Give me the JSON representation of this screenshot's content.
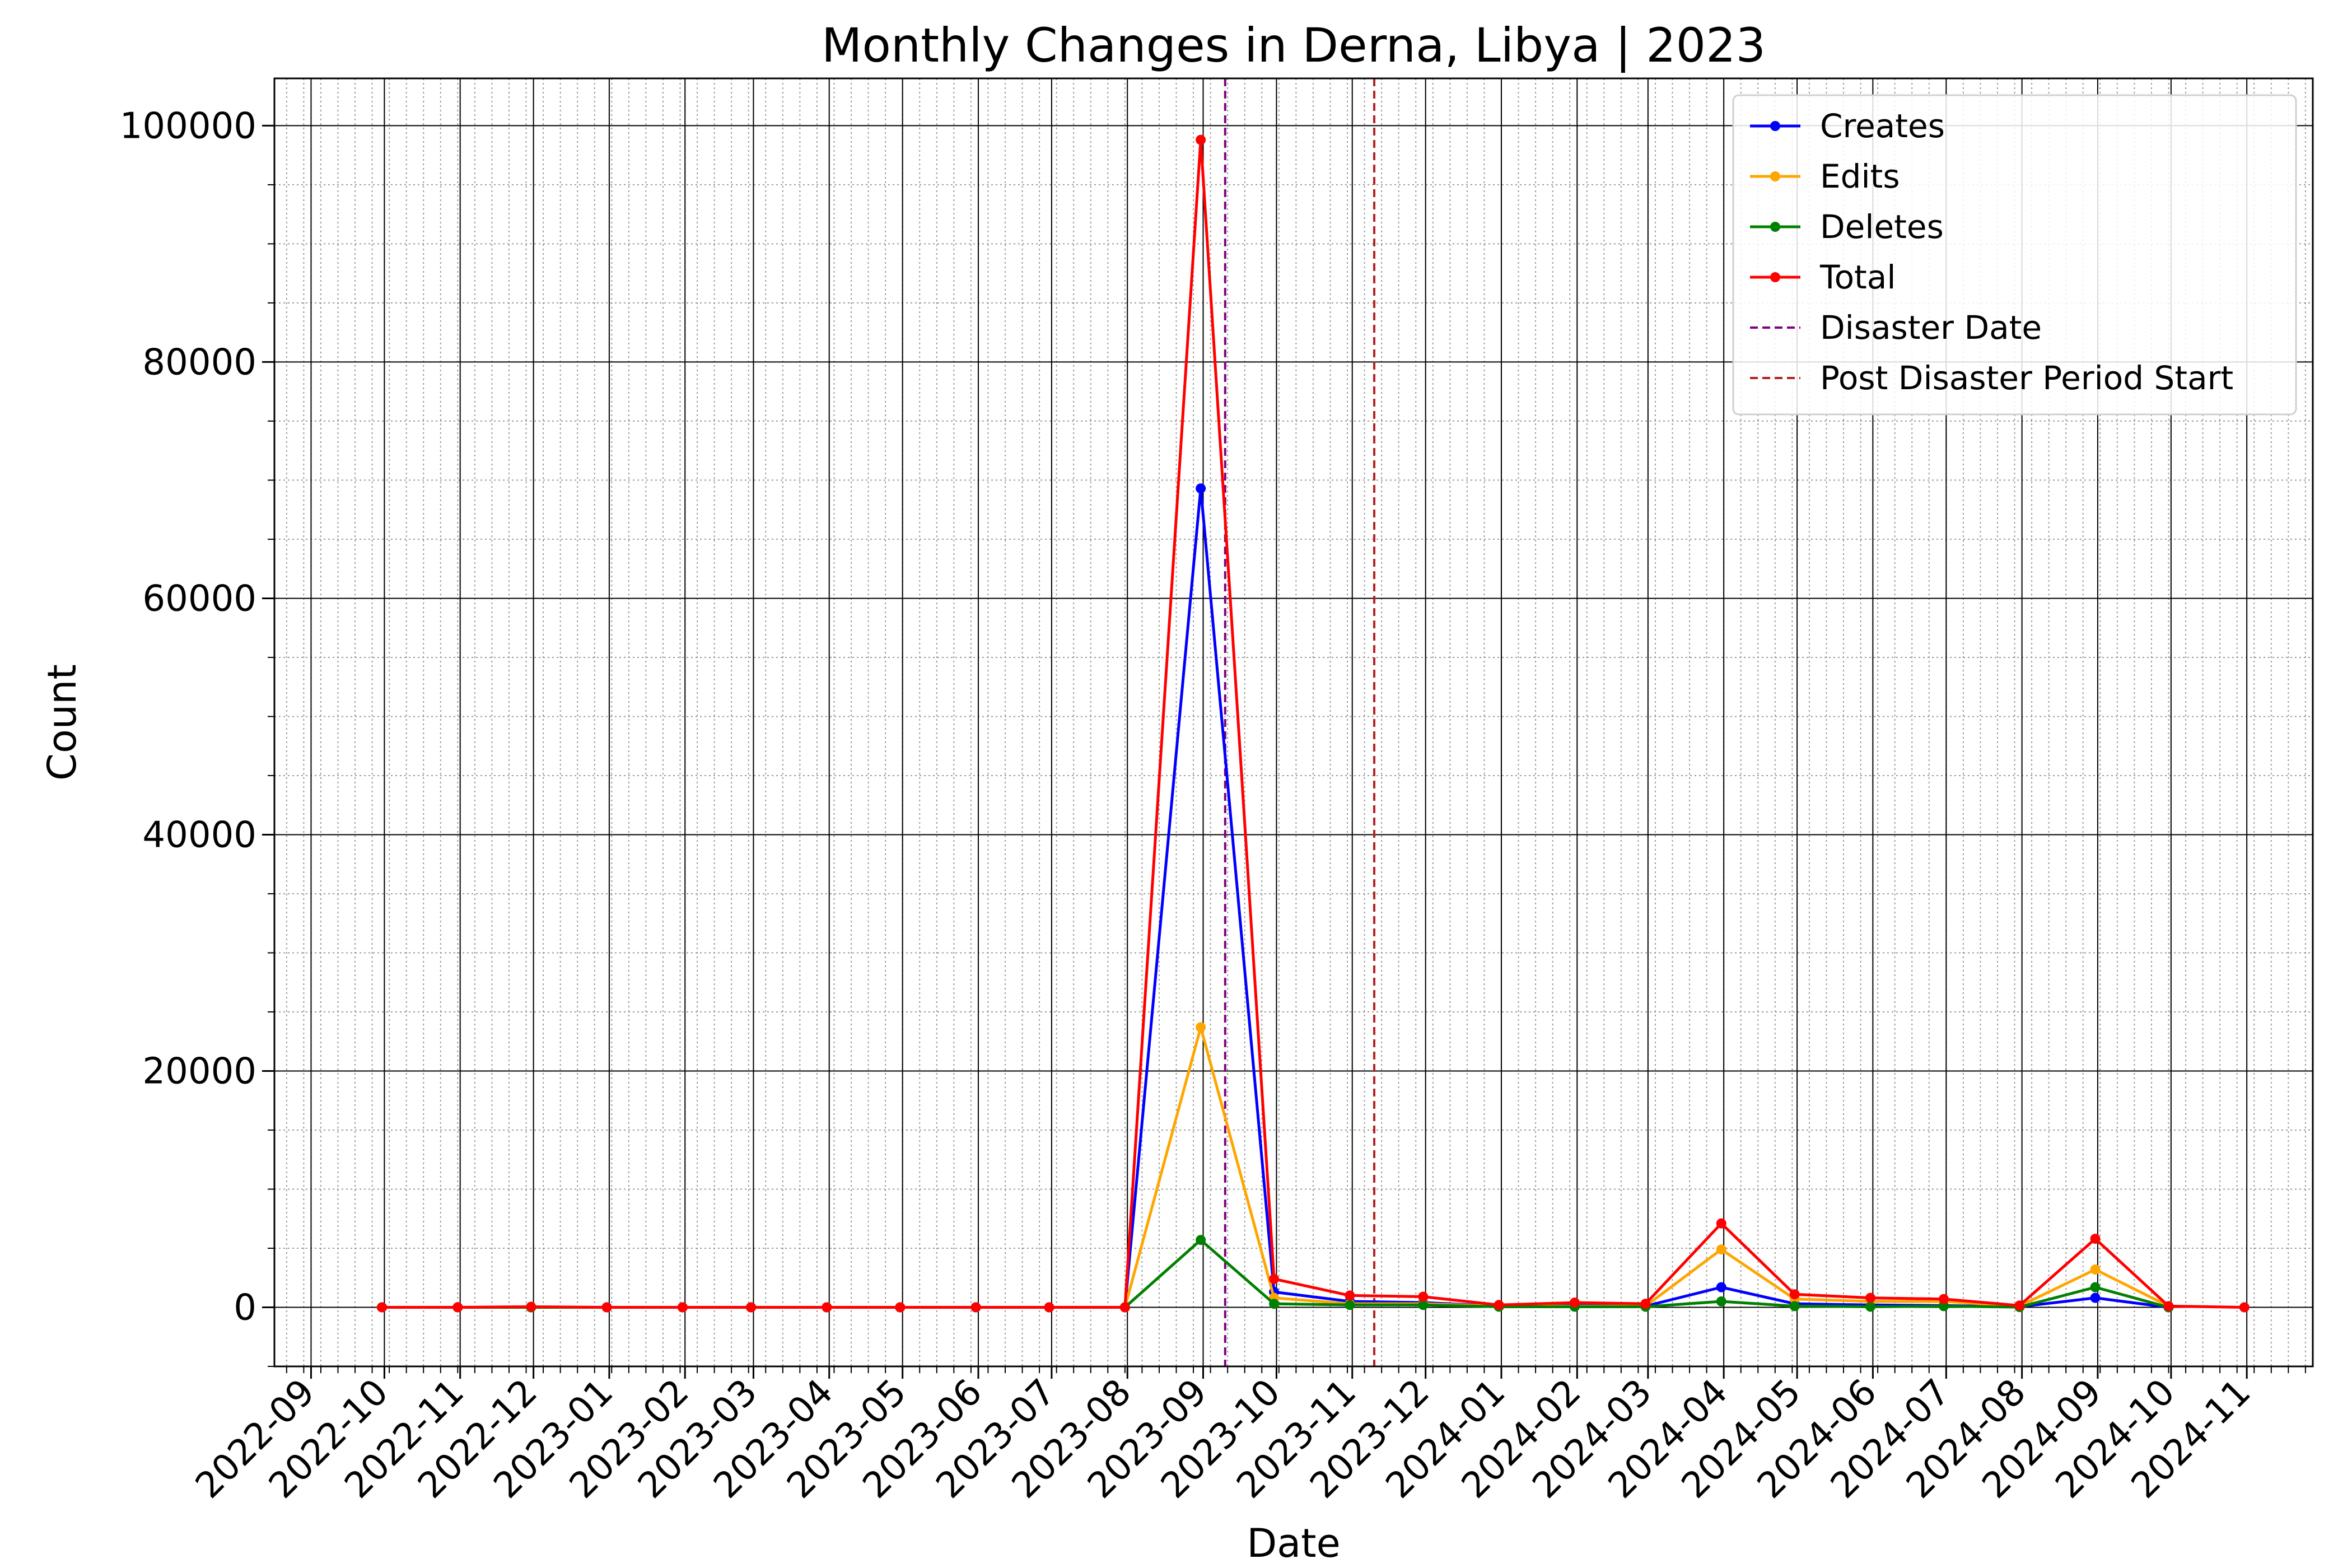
{
  "chart_data": {
    "type": "line",
    "title": "Monthly Changes in Derna, Libya | 2023",
    "xlabel": "Date",
    "ylabel": "Count",
    "x_ticks": [
      "2022-09",
      "2022-10",
      "2022-11",
      "2022-12",
      "2023-01",
      "2023-02",
      "2023-03",
      "2023-04",
      "2023-05",
      "2023-06",
      "2023-07",
      "2023-08",
      "2023-09",
      "2023-10",
      "2023-11",
      "2023-12",
      "2024-01",
      "2024-02",
      "2024-03",
      "2024-04",
      "2024-05",
      "2024-06",
      "2024-07",
      "2024-08",
      "2024-09",
      "2024-10",
      "2024-11"
    ],
    "y_ticks": [
      0,
      20000,
      40000,
      60000,
      80000,
      100000
    ],
    "xlim": [
      "2022-08-17",
      "2024-11-28"
    ],
    "ylim": [
      -5000,
      104000
    ],
    "grid": true,
    "legend_position": "top-right",
    "x": [
      "2022-09-30",
      "2022-10-31",
      "2022-11-30",
      "2022-12-31",
      "2023-01-31",
      "2023-02-28",
      "2023-03-31",
      "2023-04-30",
      "2023-05-31",
      "2023-06-30",
      "2023-07-31",
      "2023-08-31",
      "2023-09-30",
      "2023-10-31",
      "2023-11-30",
      "2023-12-31",
      "2024-01-31",
      "2024-02-29",
      "2024-03-31",
      "2024-04-30",
      "2024-05-31",
      "2024-06-30",
      "2024-07-31",
      "2024-08-31",
      "2024-09-30",
      "2024-10-31"
    ],
    "series": [
      {
        "name": "Creates",
        "color": "#0000ff",
        "values": [
          0,
          0,
          0,
          0,
          0,
          0,
          0,
          0,
          0,
          0,
          0,
          69300,
          1300,
          500,
          400,
          100,
          200,
          100,
          1700,
          300,
          200,
          150,
          50,
          800,
          0,
          null
        ]
      },
      {
        "name": "Edits",
        "color": "#ffa500",
        "values": [
          0,
          0,
          0,
          0,
          0,
          0,
          0,
          0,
          0,
          0,
          0,
          23700,
          800,
          300,
          300,
          100,
          100,
          100,
          4900,
          700,
          500,
          500,
          100,
          3200,
          100,
          null
        ]
      },
      {
        "name": "Deletes",
        "color": "#008000",
        "values": [
          0,
          0,
          0,
          0,
          0,
          0,
          0,
          0,
          0,
          0,
          0,
          5700,
          300,
          200,
          200,
          50,
          50,
          50,
          500,
          100,
          50,
          100,
          20,
          1700,
          0,
          null
        ]
      },
      {
        "name": "Total",
        "color": "#ff0000",
        "values": [
          0,
          0,
          50,
          0,
          0,
          0,
          0,
          0,
          0,
          0,
          0,
          98800,
          2400,
          1000,
          900,
          200,
          400,
          300,
          7100,
          1100,
          800,
          700,
          150,
          5800,
          100,
          0
        ]
      }
    ],
    "vlines": [
      {
        "name": "Disaster Date",
        "date": "2023-09-10",
        "color": "#800080"
      },
      {
        "name": "Post Disaster Period Start",
        "date": "2023-11-10",
        "color": "#b22222"
      }
    ]
  }
}
